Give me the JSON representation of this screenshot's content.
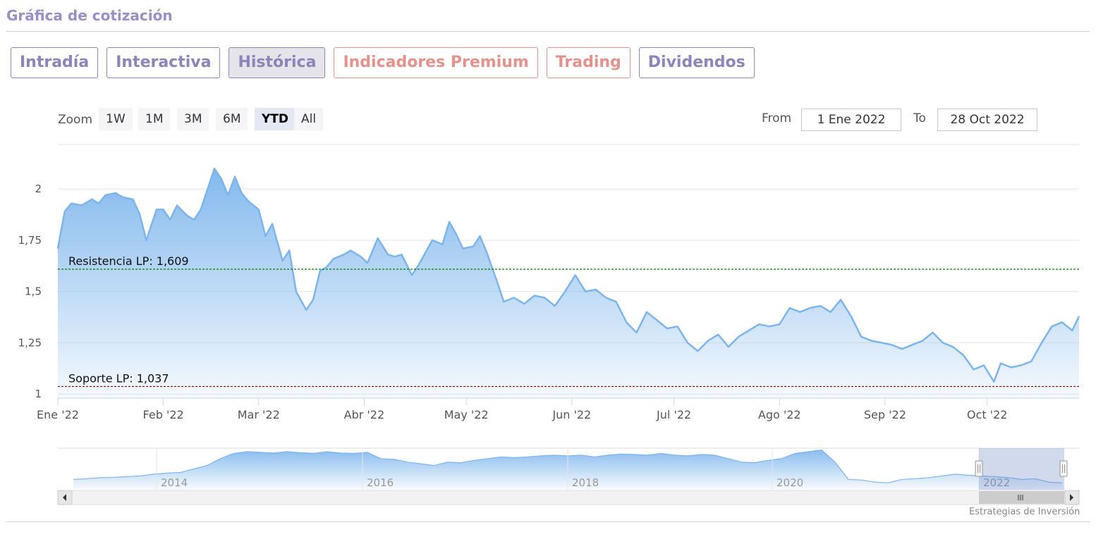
{
  "header": {
    "title": "Gráfica de cotización"
  },
  "tabs": [
    {
      "label": "Intradía",
      "active": false,
      "premium": false
    },
    {
      "label": "Interactiva",
      "active": false,
      "premium": false
    },
    {
      "label": "Histórica",
      "active": true,
      "premium": false
    },
    {
      "label": "Indicadores Premium",
      "active": false,
      "premium": true
    },
    {
      "label": "Trading",
      "active": false,
      "premium": true
    },
    {
      "label": "Dividendos",
      "active": false,
      "premium": false
    }
  ],
  "zoom": {
    "label": "Zoom",
    "buttons": [
      "1W",
      "1M",
      "3M",
      "6M",
      "YTD",
      "All"
    ],
    "selected": "YTD"
  },
  "range": {
    "from_label": "From",
    "from_value": "1 Ene 2022",
    "to_label": "To",
    "to_value": "28 Oct 2022"
  },
  "credit": "Estrategias de Inversión",
  "colors": {
    "line": "#7cb5ec",
    "resistance": "#008000",
    "support": "#8b0000",
    "accent": "#8d84b8",
    "premium": "#e5928d"
  },
  "chart_data": {
    "type": "area",
    "ylim": [
      0.98,
      2.2
    ],
    "yticks": [
      {
        "value": 1,
        "label": "1"
      },
      {
        "value": 1.25,
        "label": "1,25"
      },
      {
        "value": 1.5,
        "label": "1,5"
      },
      {
        "value": 1.75,
        "label": "1,75"
      },
      {
        "value": 2,
        "label": "2"
      }
    ],
    "xlim": [
      "2022-01-01",
      "2022-10-28"
    ],
    "xticks": [
      {
        "date": "2022-01-01",
        "label": "Ene '22"
      },
      {
        "date": "2022-02-01",
        "label": "Feb '22"
      },
      {
        "date": "2022-03-01",
        "label": "Mar '22"
      },
      {
        "date": "2022-04-01",
        "label": "Abr '22"
      },
      {
        "date": "2022-05-01",
        "label": "May '22"
      },
      {
        "date": "2022-06-01",
        "label": "Jun '22"
      },
      {
        "date": "2022-07-01",
        "label": "Jul '22"
      },
      {
        "date": "2022-08-01",
        "label": "Ago '22"
      },
      {
        "date": "2022-09-01",
        "label": "Sep '22"
      },
      {
        "date": "2022-10-01",
        "label": "Oct '22"
      }
    ],
    "grid": true,
    "series": [
      {
        "x": [
          "2022-01-01",
          "2022-01-03",
          "2022-01-05",
          "2022-01-08",
          "2022-01-11",
          "2022-01-13",
          "2022-01-15",
          "2022-01-18",
          "2022-01-20",
          "2022-01-23",
          "2022-01-25",
          "2022-01-27",
          "2022-01-30",
          "2022-02-01",
          "2022-02-03",
          "2022-02-05",
          "2022-02-08",
          "2022-02-10",
          "2022-02-12",
          "2022-02-14",
          "2022-02-16",
          "2022-02-18",
          "2022-02-20",
          "2022-02-22",
          "2022-02-24",
          "2022-02-26",
          "2022-03-01",
          "2022-03-03",
          "2022-03-05",
          "2022-03-08",
          "2022-03-10",
          "2022-03-12",
          "2022-03-15",
          "2022-03-17",
          "2022-03-19",
          "2022-03-21",
          "2022-03-23",
          "2022-03-26",
          "2022-03-28",
          "2022-03-31",
          "2022-04-02",
          "2022-04-05",
          "2022-04-08",
          "2022-04-10",
          "2022-04-12",
          "2022-04-15",
          "2022-04-17",
          "2022-04-19",
          "2022-04-21",
          "2022-04-24",
          "2022-04-26",
          "2022-04-28",
          "2022-04-30",
          "2022-05-03",
          "2022-05-05",
          "2022-05-07",
          "2022-05-10",
          "2022-05-12",
          "2022-05-15",
          "2022-05-18",
          "2022-05-21",
          "2022-05-24",
          "2022-05-27",
          "2022-05-30",
          "2022-06-02",
          "2022-06-05",
          "2022-06-08",
          "2022-06-11",
          "2022-06-14",
          "2022-06-17",
          "2022-06-20",
          "2022-06-23",
          "2022-06-26",
          "2022-06-29",
          "2022-07-02",
          "2022-07-05",
          "2022-07-08",
          "2022-07-11",
          "2022-07-14",
          "2022-07-17",
          "2022-07-20",
          "2022-07-23",
          "2022-07-26",
          "2022-07-29",
          "2022-08-01",
          "2022-08-04",
          "2022-08-07",
          "2022-08-10",
          "2022-08-13",
          "2022-08-16",
          "2022-08-19",
          "2022-08-22",
          "2022-08-25",
          "2022-08-28",
          "2022-08-31",
          "2022-09-03",
          "2022-09-06",
          "2022-09-09",
          "2022-09-12",
          "2022-09-15",
          "2022-09-18",
          "2022-09-21",
          "2022-09-24",
          "2022-09-27",
          "2022-09-30",
          "2022-10-03",
          "2022-10-05",
          "2022-10-08",
          "2022-10-11",
          "2022-10-14",
          "2022-10-17",
          "2022-10-20",
          "2022-10-23",
          "2022-10-26",
          "2022-10-28"
        ],
        "y": [
          1.71,
          1.89,
          1.93,
          1.92,
          1.95,
          1.93,
          1.97,
          1.98,
          1.96,
          1.95,
          1.88,
          1.75,
          1.9,
          1.9,
          1.85,
          1.92,
          1.87,
          1.85,
          1.9,
          2.0,
          2.1,
          2.05,
          1.97,
          2.06,
          1.98,
          1.94,
          1.9,
          1.77,
          1.83,
          1.65,
          1.7,
          1.5,
          1.41,
          1.46,
          1.6,
          1.62,
          1.66,
          1.68,
          1.7,
          1.67,
          1.64,
          1.76,
          1.68,
          1.67,
          1.68,
          1.58,
          1.63,
          1.69,
          1.75,
          1.73,
          1.84,
          1.78,
          1.71,
          1.72,
          1.77,
          1.69,
          1.55,
          1.45,
          1.47,
          1.44,
          1.48,
          1.47,
          1.43,
          1.5,
          1.58,
          1.5,
          1.51,
          1.47,
          1.45,
          1.35,
          1.3,
          1.4,
          1.36,
          1.32,
          1.33,
          1.25,
          1.21,
          1.26,
          1.29,
          1.23,
          1.28,
          1.31,
          1.34,
          1.33,
          1.34,
          1.42,
          1.4,
          1.42,
          1.43,
          1.4,
          1.46,
          1.38,
          1.28,
          1.26,
          1.25,
          1.24,
          1.22,
          1.24,
          1.26,
          1.3,
          1.25,
          1.23,
          1.19,
          1.12,
          1.14,
          1.06,
          1.15,
          1.13,
          1.14,
          1.16,
          1.25,
          1.33,
          1.35,
          1.31,
          1.38
        ]
      }
    ],
    "annotations": [
      {
        "label": "Resistencia LP: 1,609",
        "value": 1.609,
        "color": "#008000"
      },
      {
        "label": "Soporte LP: 1,037",
        "value": 1.037,
        "color": "#8b0000"
      }
    ],
    "navigator": {
      "xlabels": [
        "2014",
        "2016",
        "2018",
        "2020",
        "2022"
      ],
      "values": [
        0.7,
        0.72,
        0.75,
        0.76,
        0.78,
        0.8,
        0.85,
        0.88,
        0.9,
        1.0,
        1.1,
        1.3,
        1.45,
        1.5,
        1.48,
        1.46,
        1.5,
        1.47,
        1.45,
        1.5,
        1.46,
        1.45,
        1.48,
        1.3,
        1.28,
        1.2,
        1.15,
        1.1,
        1.2,
        1.18,
        1.25,
        1.3,
        1.35,
        1.33,
        1.35,
        1.38,
        1.4,
        1.38,
        1.4,
        1.35,
        1.4,
        1.43,
        1.42,
        1.4,
        1.45,
        1.4,
        1.38,
        1.42,
        1.4,
        1.3,
        1.2,
        1.18,
        1.25,
        1.3,
        1.45,
        1.5,
        1.55,
        1.2,
        0.7,
        0.68,
        0.62,
        0.6,
        0.7,
        0.72,
        0.75,
        0.8,
        0.85,
        0.82,
        0.8,
        0.78,
        0.75,
        0.7,
        0.72,
        0.62,
        0.6
      ],
      "ylim": [
        0.4,
        1.6
      ]
    }
  }
}
